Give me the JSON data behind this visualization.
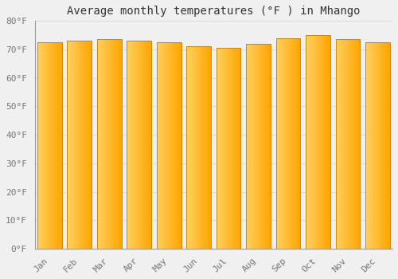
{
  "title": "Average monthly temperatures (°F ) in Mhango",
  "months": [
    "Jan",
    "Feb",
    "Mar",
    "Apr",
    "May",
    "Jun",
    "Jul",
    "Aug",
    "Sep",
    "Oct",
    "Nov",
    "Dec"
  ],
  "values": [
    72.5,
    73.0,
    73.5,
    73.0,
    72.5,
    71.0,
    70.5,
    72.0,
    74.0,
    75.0,
    73.5,
    72.5
  ],
  "ylim": [
    0,
    80
  ],
  "yticks": [
    0,
    10,
    20,
    30,
    40,
    50,
    60,
    70,
    80
  ],
  "ytick_labels": [
    "0°F",
    "10°F",
    "20°F",
    "30°F",
    "40°F",
    "50°F",
    "60°F",
    "70°F",
    "80°F"
  ],
  "bar_color_left": "#FFD060",
  "bar_color_right": "#FFA500",
  "bar_edge_color": "#CC8800",
  "background_color": "#F0F0F0",
  "grid_color": "#DDDDDD",
  "title_fontsize": 10,
  "tick_fontsize": 8,
  "bar_width": 0.82
}
